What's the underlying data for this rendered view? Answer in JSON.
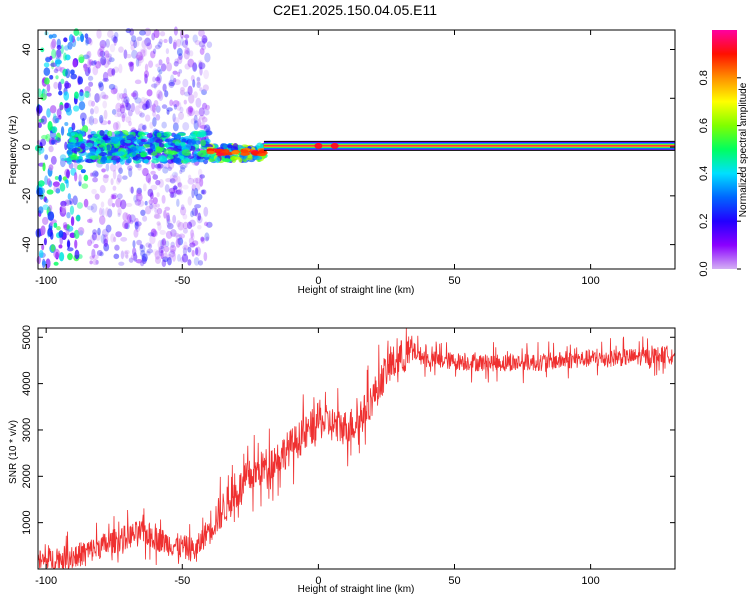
{
  "title": "C2E1.2025.150.04.05.E11",
  "chart_data": [
    {
      "type": "heatmap",
      "name": "spectrogram",
      "xlabel": "Height of straight line (km)",
      "ylabel": "Frequency (Hz)",
      "xlim": [
        -103,
        131
      ],
      "ylim": [
        -50,
        48
      ],
      "x_ticks": [
        -100,
        -50,
        0,
        50,
        100
      ],
      "y_ticks": [
        -40,
        -20,
        0,
        20,
        40
      ],
      "colorbar": {
        "label": "Normalized spectral amplitude",
        "range": [
          0,
          1
        ],
        "ticks": [
          "0.0",
          "0.2",
          "0.4",
          "0.6",
          "0.8"
        ],
        "tick_values": [
          0.0,
          0.2,
          0.4,
          0.6,
          0.8
        ],
        "colormap": [
          "#d4b0f4",
          "#8a00ff",
          "#2200ff",
          "#0066ff",
          "#00e0ff",
          "#00ff60",
          "#80ff00",
          "#ffff00",
          "#ff9000",
          "#ff1000",
          "#ff00a0"
        ]
      },
      "carrier_line": {
        "from_x": -20,
        "to_x": 131,
        "frequency": 0.5,
        "amplitude": 0.95
      },
      "noise_region": {
        "from_x": -103,
        "to_x": -40,
        "spread_hz": 48
      }
    },
    {
      "type": "line",
      "name": "snr",
      "xlabel": "Height of straight line (km)",
      "ylabel": "SNR (10 * v/v)",
      "xlim": [
        -103,
        131
      ],
      "ylim": [
        0,
        5200
      ],
      "x_ticks": [
        -100,
        -50,
        0,
        50,
        100
      ],
      "y_ticks": [
        1000,
        2000,
        3000,
        4000,
        5000
      ],
      "line_color": "#ef3030",
      "trend": {
        "x": [
          -103,
          -90,
          -75,
          -65,
          -55,
          -45,
          -40,
          -35,
          -25,
          -15,
          -5,
          0,
          10,
          15,
          20,
          25,
          30,
          35,
          40,
          60,
          80,
          100,
          120,
          131
        ],
        "y": [
          150,
          260,
          600,
          800,
          550,
          400,
          900,
          1300,
          2000,
          2400,
          2900,
          3200,
          3050,
          3200,
          3700,
          4300,
          4550,
          4700,
          4520,
          4450,
          4460,
          4540,
          4580,
          4650
        ]
      }
    }
  ]
}
